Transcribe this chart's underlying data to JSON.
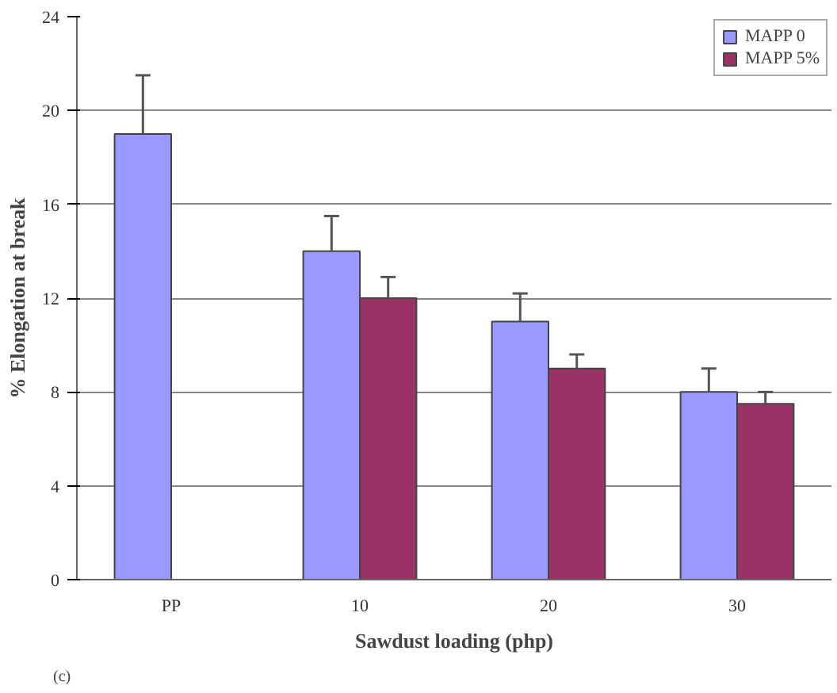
{
  "chart_data": {
    "type": "bar",
    "xlabel": "Sawdust loading (php)",
    "ylabel": "% Elongation at break",
    "categories": [
      "PP",
      "10",
      "20",
      "30"
    ],
    "series": [
      {
        "name": "MAPP 0",
        "color": "#9999ff",
        "values": [
          19,
          14,
          11,
          8
        ],
        "errors": [
          [
            19,
            21.5
          ],
          [
            14,
            15.5
          ],
          [
            11,
            12.2
          ],
          [
            8,
            9
          ]
        ]
      },
      {
        "name": "MAPP 5%",
        "color": "#993366",
        "values": [
          null,
          12,
          9,
          7.5
        ],
        "errors": [
          null,
          [
            12,
            12.9
          ],
          [
            9,
            9.6
          ],
          [
            7.5,
            8
          ]
        ]
      }
    ],
    "ylim": [
      0,
      24
    ],
    "yticks": [
      0,
      4,
      8,
      12,
      16,
      20,
      24
    ],
    "grid": "y",
    "legend": "top right",
    "annotations": [
      "(c)"
    ]
  }
}
